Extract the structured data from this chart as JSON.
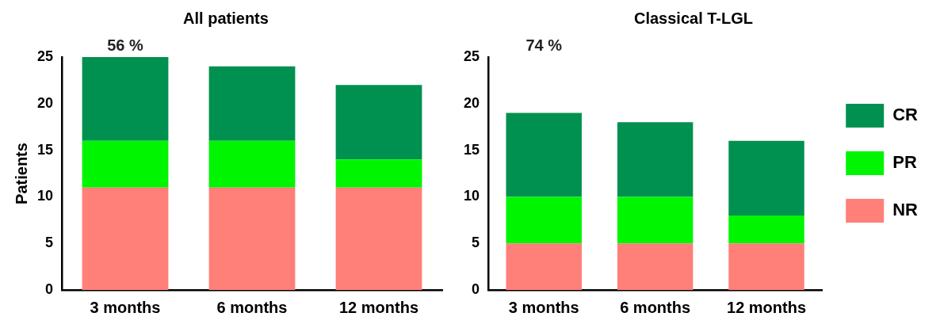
{
  "chart_data": [
    {
      "type": "bar",
      "title": "All patients",
      "ylabel": "Patients",
      "categories": [
        "3 months",
        "6 months",
        "12 months"
      ],
      "stacked": true,
      "series": [
        {
          "color": "#ff7f79",
          "values": [
            11,
            11,
            11
          ]
        },
        {
          "color": "#00f500",
          "values": [
            5,
            5,
            3
          ]
        },
        {
          "color": "#009150",
          "values": [
            9,
            8,
            8
          ]
        }
      ],
      "ylim": [
        0,
        25
      ],
      "yticks": [
        0,
        5,
        10,
        15,
        20,
        25
      ],
      "grid": false,
      "legend": false,
      "annotations": [
        "56 %"
      ]
    },
    {
      "type": "bar",
      "title": "Classical T-LGL",
      "categories": [
        "3 months",
        "6 months",
        "12 months"
      ],
      "stacked": true,
      "series": [
        {
          "name": "NR",
          "color": "#ff7f79",
          "values": [
            5,
            5,
            5
          ]
        },
        {
          "name": "PR",
          "color": "#00f500",
          "values": [
            5,
            5,
            3
          ]
        },
        {
          "name": "CR",
          "color": "#009150",
          "values": [
            9,
            8,
            8
          ]
        }
      ],
      "ylim": [
        0,
        25
      ],
      "yticks": [
        0,
        5,
        10,
        15,
        20,
        25
      ],
      "grid": false,
      "legend": "right",
      "annotations": [
        "74 %"
      ]
    }
  ]
}
